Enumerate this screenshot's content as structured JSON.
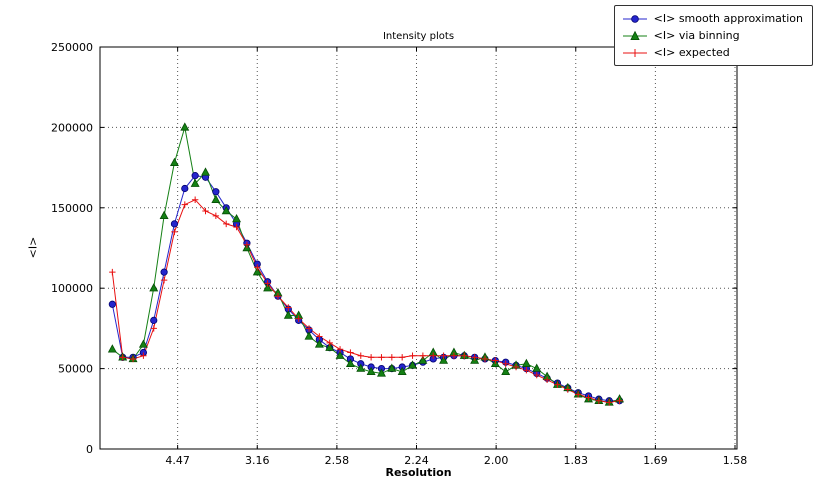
{
  "figure": {
    "title": "Intensity plots",
    "xlabel": "Resolution",
    "ylabel": "<I>"
  },
  "chart_data": {
    "type": "line",
    "title": "Intensity plots",
    "xlabel": "Resolution",
    "ylabel": "<I>",
    "grid": "dotted",
    "legend_position": "upper right outside plot",
    "x_units_note": "x is 1/d^2; tick labels show resolution d in Angstroms",
    "xlim": [
      0.00125,
      0.40125
    ],
    "ylim": [
      0,
      250000
    ],
    "xticks": {
      "values": [
        0.05,
        0.1,
        0.15,
        0.2,
        0.25,
        0.3,
        0.35,
        0.4
      ],
      "labels": [
        "4.47",
        "3.16",
        "2.58",
        "2.24",
        "2.00",
        "1.83",
        "1.69",
        "1.58"
      ]
    },
    "yticks": {
      "values": [
        0,
        50000,
        100000,
        150000,
        200000,
        250000
      ],
      "labels": [
        "0",
        "50000",
        "100000",
        "150000",
        "200000",
        "250000"
      ]
    },
    "x": [
      0.009,
      0.0155,
      0.022,
      0.0285,
      0.035,
      0.0415,
      0.048,
      0.0545,
      0.061,
      0.0675,
      0.074,
      0.0805,
      0.087,
      0.0935,
      0.1,
      0.1065,
      0.113,
      0.1195,
      0.126,
      0.1325,
      0.139,
      0.1455,
      0.152,
      0.1585,
      0.165,
      0.1715,
      0.178,
      0.1845,
      0.191,
      0.1975,
      0.204,
      0.2105,
      0.217,
      0.2235,
      0.23,
      0.2365,
      0.243,
      0.2495,
      0.256,
      0.2625,
      0.269,
      0.2755,
      0.282,
      0.2885,
      0.295,
      0.3015,
      0.308,
      0.3145,
      0.321,
      0.3275
    ],
    "series": [
      {
        "name": "<I> smooth approximation",
        "marker": "circle",
        "color": "#2525cc",
        "edge": "#00006e",
        "values": [
          90000,
          57000,
          57000,
          60000,
          80000,
          110000,
          140000,
          162000,
          170000,
          169000,
          160000,
          150000,
          140000,
          128000,
          115000,
          104000,
          95000,
          87000,
          80000,
          74000,
          68000,
          63000,
          60000,
          56000,
          53000,
          51000,
          50000,
          50000,
          51000,
          52000,
          54000,
          56000,
          57000,
          58000,
          58000,
          57000,
          56000,
          55000,
          54000,
          52000,
          50000,
          47000,
          44000,
          41000,
          38000,
          35000,
          33000,
          31000,
          30000,
          30000
        ]
      },
      {
        "name": "<I> via binning",
        "marker": "triangle",
        "color": "#148014",
        "edge": "#054d05",
        "values": [
          62000,
          57000,
          56000,
          65000,
          100000,
          145000,
          178000,
          200000,
          165000,
          172000,
          155000,
          148000,
          143000,
          125000,
          110000,
          100000,
          97000,
          83000,
          83000,
          70000,
          65000,
          63000,
          58000,
          53000,
          50000,
          48000,
          47000,
          50000,
          48000,
          52000,
          55000,
          60000,
          55000,
          60000,
          58000,
          55000,
          57000,
          53000,
          48000,
          52000,
          53000,
          50000,
          45000,
          40000,
          38000,
          34000,
          31000,
          30000,
          29000,
          31000
        ]
      },
      {
        "name": "<I> expected",
        "marker": "plus",
        "color": "#e81010",
        "edge": "#e81010",
        "values": [
          110000,
          57000,
          56000,
          58000,
          75000,
          105000,
          135000,
          152000,
          155000,
          148000,
          145000,
          140000,
          138000,
          127000,
          113000,
          103000,
          95000,
          88000,
          81000,
          75000,
          70000,
          66000,
          62000,
          60000,
          58000,
          57000,
          57000,
          57000,
          57000,
          58000,
          58000,
          58000,
          58000,
          58000,
          58000,
          57000,
          56000,
          55000,
          53000,
          51000,
          49000,
          46000,
          43000,
          40000,
          37000,
          34000,
          32000,
          30000,
          29000,
          30000
        ]
      }
    ]
  }
}
